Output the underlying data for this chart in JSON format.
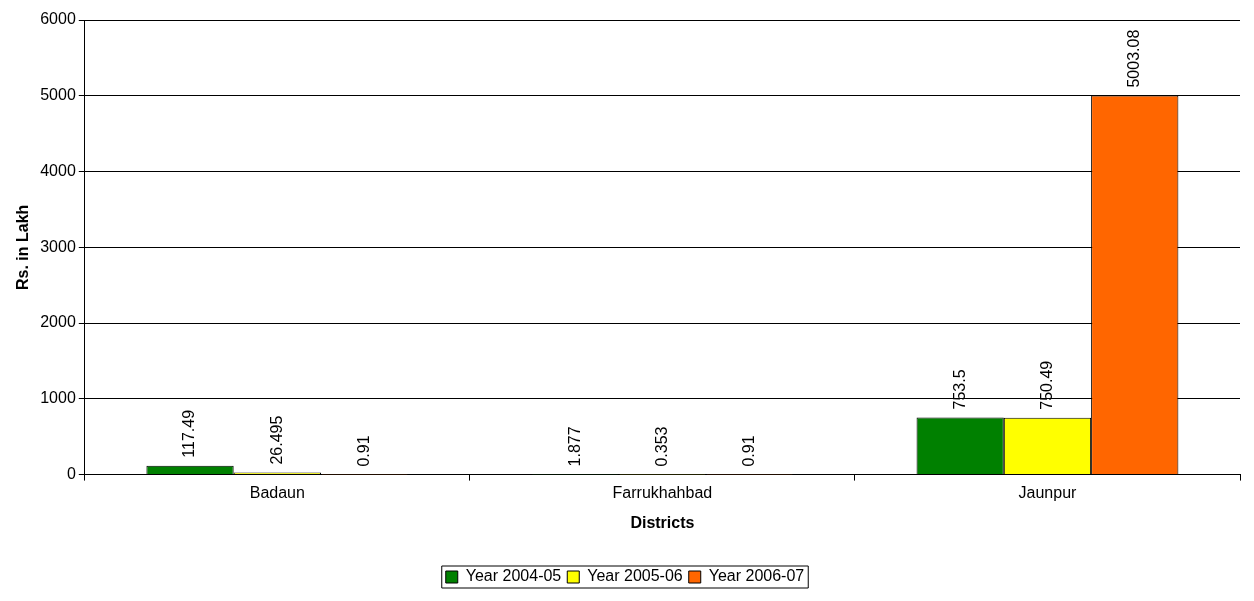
{
  "chart_data": {
    "type": "bar",
    "xlabel": "Districts",
    "ylabel": "Rs. in Lakh",
    "categories": [
      "Badaun",
      "Farrukhahbad",
      "Jaunpur"
    ],
    "series": [
      {
        "name": "Year 2004-05",
        "color": "#008000",
        "values": [
          117.49,
          1.877,
          753.5
        ]
      },
      {
        "name": "Year 2005-06",
        "color": "#ffff00",
        "values": [
          26.495,
          0.353,
          750.49
        ]
      },
      {
        "name": "Year 2006-07",
        "color": "#ff6600",
        "values": [
          0.91,
          0.91,
          5003.08
        ]
      }
    ],
    "ylim": [
      0,
      6000
    ],
    "yticks": [
      0,
      1000,
      2000,
      3000,
      4000,
      5000,
      6000
    ],
    "grid": "y",
    "legend": "bottom",
    "data_labels": true
  }
}
